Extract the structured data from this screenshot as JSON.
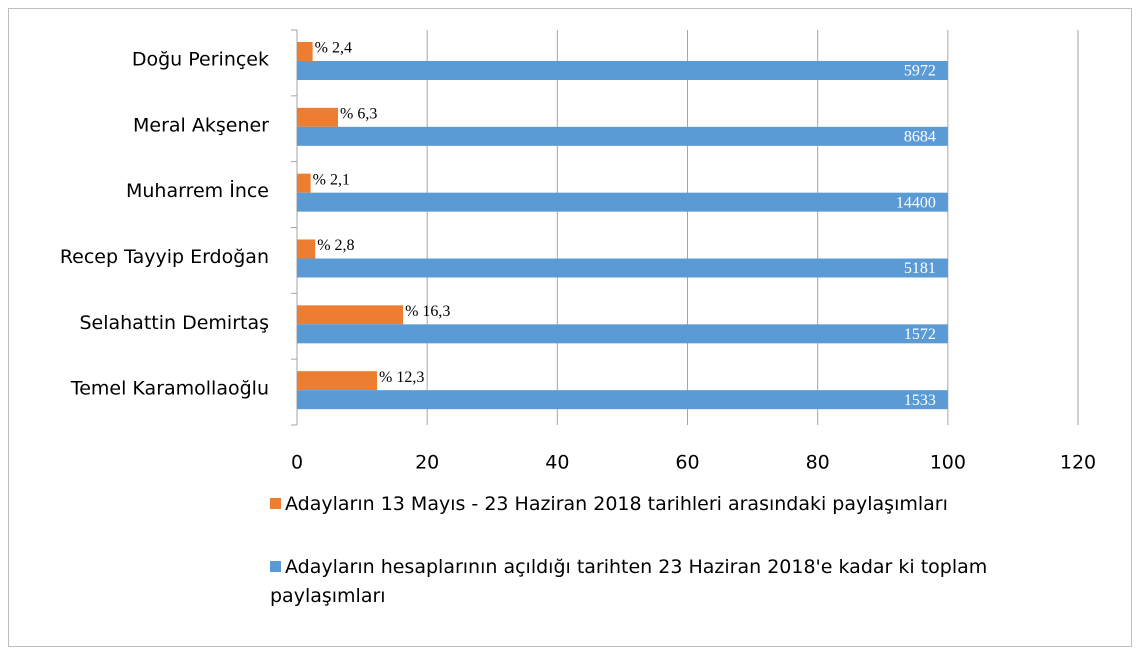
{
  "chart_data": {
    "type": "bar",
    "orientation": "horizontal",
    "categories": [
      "Doğu Perinçek",
      "Meral Akşener",
      "Muharrem İnce",
      "Recep Tayyip Erdoğan",
      "Selahattin Demirtaş",
      "Temel Karamollaoğlu"
    ],
    "series": [
      {
        "name": "Adayların 13 Mayıs - 23 Haziran 2018 tarihleri arasındaki paylaşımları",
        "color": "#ed7d31",
        "values": [
          2.4,
          6.3,
          2.1,
          2.8,
          16.3,
          12.3
        ],
        "value_labels": [
          "% 2,4",
          "% 6,3",
          "% 2,1",
          "% 2,8",
          "% 16,3",
          "% 12,3"
        ]
      },
      {
        "name": "Adayların hesaplarının açıldığı tarihten 23 Haziran 2018'e kadar ki toplam paylaşımları",
        "color": "#5b9bd5",
        "values": [
          100,
          100,
          100,
          100,
          100,
          100
        ],
        "totals": [
          5972,
          8684,
          14400,
          5181,
          1572,
          1533
        ]
      }
    ],
    "xlim": [
      0,
      120
    ],
    "xticks": [
      0,
      20,
      40,
      60,
      80,
      100,
      120
    ],
    "grid": true
  }
}
